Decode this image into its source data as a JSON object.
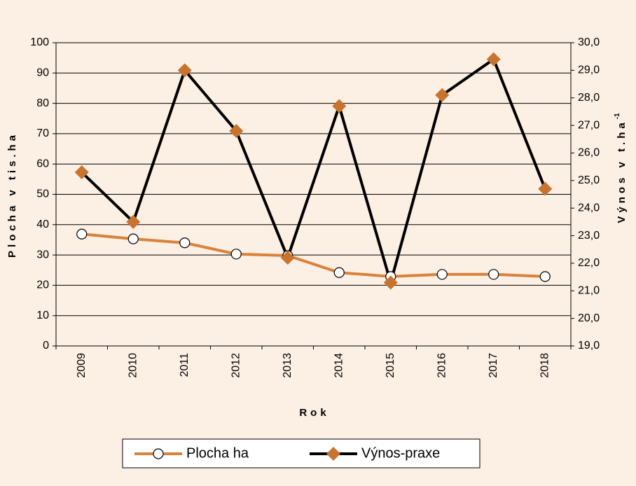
{
  "chart_data": {
    "type": "line",
    "categories": [
      "2009",
      "2010",
      "2011",
      "2012",
      "2013",
      "2014",
      "2015",
      "2016",
      "2017",
      "2018"
    ],
    "series": [
      {
        "name": "Plocha ha",
        "color": "#d9823b",
        "marker_color": "#ffffff",
        "marker": "circle",
        "values": [
          36.9,
          35.3,
          34.0,
          30.3,
          29.8,
          24.2,
          22.9,
          23.6,
          23.6,
          22.9
        ]
      },
      {
        "name": "Výnos-praxe",
        "color": "#000000",
        "marker_color": "#c8742f",
        "marker": "diamond",
        "axis": "y2",
        "values": [
          25.3,
          23.5,
          29.0,
          26.8,
          22.2,
          27.7,
          21.3,
          28.1,
          29.4,
          24.7
        ]
      }
    ],
    "xlabel": "Rok",
    "ylabel": "Plocha v tis.ha",
    "y2label": "Výnos v t.ha",
    "y2label_sup": "-1",
    "ylim": [
      0,
      100
    ],
    "yticks": [
      0,
      10,
      20,
      30,
      40,
      50,
      60,
      70,
      80,
      90,
      100
    ],
    "y2lim": [
      19,
      30
    ],
    "y2ticks": [
      {
        "value": 19,
        "label": "19,0"
      },
      {
        "value": 20,
        "label": "20,0"
      },
      {
        "value": 21,
        "label": "21,0"
      },
      {
        "value": 22,
        "label": "22,0"
      },
      {
        "value": 23,
        "label": "23,0"
      },
      {
        "value": 24,
        "label": "24,0"
      },
      {
        "value": 25,
        "label": "25,0"
      },
      {
        "value": 26,
        "label": "26,0"
      },
      {
        "value": 27,
        "label": "27,0"
      },
      {
        "value": 28,
        "label": "28,0"
      },
      {
        "value": 29,
        "label": "29,0"
      },
      {
        "value": 30,
        "label": "30,0"
      }
    ],
    "grid": true,
    "legend": "bottom"
  }
}
